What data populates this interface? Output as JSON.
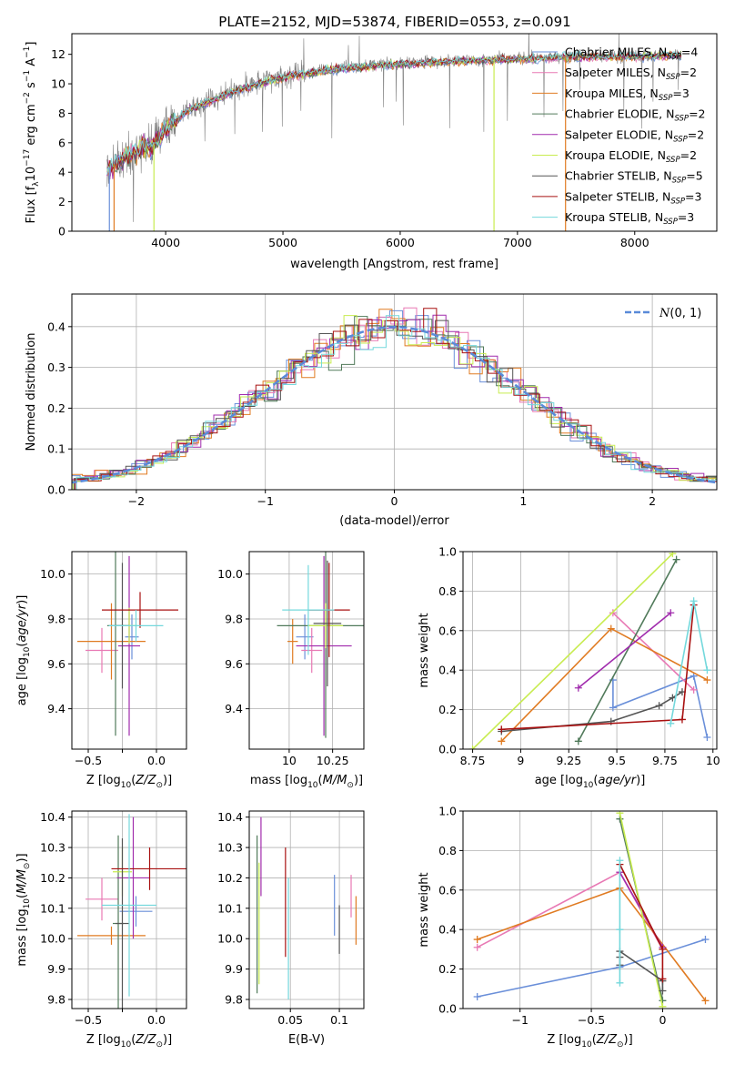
{
  "title": "PLATE=2152, MJD=53874, FIBERID=0553, z=0.091",
  "colors": {
    "Chabrier MILES": "#6a8fd9",
    "Salpeter MILES": "#e879b4",
    "Kroupa MILES": "#e07b22",
    "Chabrier ELODIE": "#507a5a",
    "Salpeter ELODIE": "#a12cad",
    "Kroupa ELODIE": "#c8ec50",
    "Chabrier STELIB": "#555555",
    "Salpeter STELIB": "#a81010",
    "Kroupa STELIB": "#74d8dc",
    "data": "#808080",
    "gauss": "#5a8ad8"
  },
  "chart_data": [
    {
      "id": "spectrum",
      "type": "line",
      "xlabel": "wavelength [Angstrom, rest frame]",
      "ylabel": "Flux [f_λ 10^-17 erg cm^-2 s^-1 A^-1]",
      "xlim": [
        3200,
        8700
      ],
      "ylim": [
        0,
        13.4
      ],
      "xticks": [
        4000,
        5000,
        6000,
        7000,
        8000
      ],
      "yticks": [
        0,
        2,
        4,
        6,
        8,
        10,
        12
      ],
      "legend": [
        {
          "label": "Chabrier MILES, N",
          "sub": "SSP",
          "suffix": "=4"
        },
        {
          "label": "Salpeter MILES, N",
          "sub": "SSP",
          "suffix": "=2"
        },
        {
          "label": "Kroupa MILES, N",
          "sub": "SSP",
          "suffix": "=3"
        },
        {
          "label": "Chabrier ELODIE, N",
          "sub": "SSP",
          "suffix": "=2"
        },
        {
          "label": "Salpeter ELODIE, N",
          "sub": "SSP",
          "suffix": "=2"
        },
        {
          "label": "Kroupa ELODIE, N",
          "sub": "SSP",
          "suffix": "=2"
        },
        {
          "label": "Chabrier STELIB, N",
          "sub": "SSP",
          "suffix": "=5"
        },
        {
          "label": "Salpeter STELIB, N",
          "sub": "SSP",
          "suffix": "=3"
        },
        {
          "label": "Kroupa STELIB, N",
          "sub": "SSP",
          "suffix": "=3"
        }
      ],
      "continuum": [
        [
          3500,
          4.2
        ],
        [
          3600,
          4.8
        ],
        [
          3700,
          5.3
        ],
        [
          3800,
          5.7
        ],
        [
          3900,
          5.9
        ],
        [
          4000,
          7.0
        ],
        [
          4200,
          8.3
        ],
        [
          4500,
          9.3
        ],
        [
          4800,
          10.1
        ],
        [
          5000,
          10.5
        ],
        [
          5500,
          11.1
        ],
        [
          6000,
          11.4
        ],
        [
          6500,
          11.6
        ],
        [
          7000,
          11.7
        ],
        [
          7500,
          11.9
        ],
        [
          8000,
          11.9
        ],
        [
          8400,
          12.0
        ]
      ]
    },
    {
      "id": "residuals",
      "type": "line",
      "xlabel": "(data-model)/error",
      "ylabel": "Normed distribution",
      "xlim": [
        -2.5,
        2.5
      ],
      "ylim": [
        0,
        0.48
      ],
      "xticks": [
        -2,
        -1,
        0,
        1,
        2
      ],
      "yticks": [
        0.0,
        0.1,
        0.2,
        0.3,
        0.4
      ],
      "legend": "N(0,1)",
      "legend_placement": "top-right"
    },
    {
      "id": "z-age",
      "type": "scatter",
      "xlabel": "Z [log10(Z/Z⊙)]",
      "ylabel": "age [log10(age/yr)]",
      "xlim": [
        -0.62,
        0.22
      ],
      "ylim": [
        9.22,
        10.1
      ],
      "xticks": [
        -0.5,
        -0.25,
        0.0
      ],
      "xtick_labels": [
        "−0.5",
        "",
        "0.0"
      ],
      "yticks": [
        9.4,
        9.6,
        9.8,
        10.0
      ],
      "points": [
        {
          "series": "Chabrier MILES",
          "x": -0.18,
          "y": 9.72,
          "xerr": 0.05,
          "yerr": 0.1
        },
        {
          "series": "Salpeter MILES",
          "x": -0.4,
          "y": 9.66,
          "xerr": 0.12,
          "yerr": 0.1
        },
        {
          "series": "Kroupa MILES",
          "x": -0.33,
          "y": 9.7,
          "xerr": 0.25,
          "yerr": 0.17
        },
        {
          "series": "Chabrier ELODIE",
          "x": -0.3,
          "y": 9.77,
          "xerr": 0.06,
          "yerr": 0.49
        },
        {
          "series": "Salpeter ELODIE",
          "x": -0.2,
          "y": 9.68,
          "xerr": 0.08,
          "yerr": 0.4
        },
        {
          "series": "Kroupa ELODIE",
          "x": -0.2,
          "y": 9.77,
          "xerr": 0.06,
          "yerr": 0.08
        },
        {
          "series": "Chabrier STELIB",
          "x": -0.25,
          "y": 9.77,
          "xerr": 0.05,
          "yerr": 0.28
        },
        {
          "series": "Salpeter STELIB",
          "x": -0.12,
          "y": 9.84,
          "xerr": 0.28,
          "yerr": 0.08
        },
        {
          "series": "Kroupa STELIB",
          "x": -0.15,
          "y": 9.77,
          "xerr": 0.2,
          "yerr": 0.07
        }
      ]
    },
    {
      "id": "mass-age",
      "type": "scatter",
      "xlabel": "mass [log10(M/M⊙)]",
      "ylabel": "",
      "xlim": [
        9.77,
        10.43
      ],
      "ylim": [
        9.22,
        10.1
      ],
      "xticks": [
        10.0,
        10.25
      ],
      "yticks": [
        9.4,
        9.6,
        9.8,
        10.0
      ],
      "points": [
        {
          "series": "Chabrier MILES",
          "x": 10.09,
          "y": 9.72,
          "xerr": 0.05,
          "yerr": 0.1
        },
        {
          "series": "Salpeter MILES",
          "x": 10.13,
          "y": 9.66,
          "xerr": 0.06,
          "yerr": 0.1
        },
        {
          "series": "Kroupa MILES",
          "x": 10.02,
          "y": 9.7,
          "xerr": 0.03,
          "yerr": 0.1
        },
        {
          "series": "Chabrier ELODIE",
          "x": 10.21,
          "y": 9.77,
          "xerr": 0.28,
          "yerr": 0.5
        },
        {
          "series": "Salpeter ELODIE",
          "x": 10.2,
          "y": 9.68,
          "xerr": 0.16,
          "yerr": 0.4
        },
        {
          "series": "Kroupa ELODIE",
          "x": 10.21,
          "y": 9.77,
          "xerr": 0.1,
          "yerr": 0.1
        },
        {
          "series": "Chabrier STELIB",
          "x": 10.22,
          "y": 9.78,
          "xerr": 0.08,
          "yerr": 0.28
        },
        {
          "series": "Salpeter STELIB",
          "x": 10.23,
          "y": 9.84,
          "xerr": 0.12,
          "yerr": 0.21
        },
        {
          "series": "Kroupa STELIB",
          "x": 10.11,
          "y": 9.84,
          "xerr": 0.15,
          "yerr": 0.2
        }
      ]
    },
    {
      "id": "age-weight",
      "type": "line",
      "xlabel": "age [log10(age/yr)]",
      "ylabel": "mass weight",
      "xlim": [
        8.7,
        10.02
      ],
      "ylim": [
        0,
        1.0
      ],
      "xticks": [
        8.75,
        9.0,
        9.25,
        9.5,
        9.75,
        10.0
      ],
      "yticks": [
        0.0,
        0.2,
        0.4,
        0.6,
        0.8,
        1.0
      ],
      "series": [
        {
          "name": "Chabrier MILES",
          "x": [
            9.48,
            9.48,
            9.9,
            9.97
          ],
          "y": [
            0.35,
            0.21,
            0.37,
            0.06
          ]
        },
        {
          "name": "Salpeter MILES",
          "x": [
            9.48,
            9.9
          ],
          "y": [
            0.69,
            0.3
          ]
        },
        {
          "name": "Kroupa MILES",
          "x": [
            8.9,
            9.47,
            9.97
          ],
          "y": [
            0.04,
            0.61,
            0.35
          ]
        },
        {
          "name": "Chabrier ELODIE",
          "x": [
            9.3,
            9.81
          ],
          "y": [
            0.04,
            0.96
          ]
        },
        {
          "name": "Salpeter ELODIE",
          "x": [
            9.3,
            9.78
          ],
          "y": [
            0.31,
            0.69
          ]
        },
        {
          "name": "Kroupa ELODIE",
          "x": [
            8.75,
            9.79
          ],
          "y": [
            0.0,
            0.99
          ]
        },
        {
          "name": "Chabrier STELIB",
          "x": [
            8.9,
            9.47,
            9.72,
            9.79,
            9.84
          ],
          "y": [
            0.09,
            0.14,
            0.22,
            0.26,
            0.29
          ]
        },
        {
          "name": "Salpeter STELIB",
          "x": [
            8.9,
            9.84,
            9.9
          ],
          "y": [
            0.1,
            0.15,
            0.73
          ]
        },
        {
          "name": "Kroupa STELIB",
          "x": [
            9.78,
            9.9,
            9.97
          ],
          "y": [
            0.13,
            0.75,
            0.4
          ]
        }
      ]
    },
    {
      "id": "z-mass",
      "type": "scatter",
      "xlabel": "Z [log10(Z/Z⊙)]",
      "ylabel": "mass [log10(M/M⊙)]",
      "xlim": [
        -0.62,
        0.22
      ],
      "ylim": [
        9.77,
        10.42
      ],
      "xticks": [
        -0.5,
        -0.25,
        0.0
      ],
      "xtick_labels": [
        "−0.5",
        "",
        "0.0"
      ],
      "yticks": [
        9.8,
        9.9,
        10.0,
        10.1,
        10.2,
        10.3,
        10.4
      ],
      "points": [
        {
          "series": "Chabrier MILES",
          "x": -0.15,
          "y": 10.09,
          "xerr": 0.12,
          "yerr": 0.05
        },
        {
          "series": "Salpeter MILES",
          "x": -0.4,
          "y": 10.13,
          "xerr": 0.12,
          "yerr": 0.07
        },
        {
          "series": "Kroupa MILES",
          "x": -0.33,
          "y": 10.01,
          "xerr": 0.25,
          "yerr": 0.03
        },
        {
          "series": "Chabrier ELODIE",
          "x": -0.28,
          "y": 10.05,
          "xerr": 0.04,
          "yerr": 0.29
        },
        {
          "series": "Salpeter ELODIE",
          "x": -0.17,
          "y": 10.2,
          "xerr": 0.12,
          "yerr": 0.2
        },
        {
          "series": "Kroupa ELODIE",
          "x": -0.25,
          "y": 10.22,
          "xerr": 0.07,
          "yerr": 0.08
        },
        {
          "series": "Chabrier STELIB",
          "x": -0.25,
          "y": 10.05,
          "xerr": 0.05,
          "yerr": 0.28
        },
        {
          "series": "Salpeter STELIB",
          "x": -0.05,
          "y": 10.23,
          "xerr": 0.28,
          "yerr": 0.07
        },
        {
          "series": "Kroupa STELIB",
          "x": -0.2,
          "y": 10.11,
          "xerr": 0.2,
          "yerr": 0.3
        }
      ]
    },
    {
      "id": "ebv-mass",
      "type": "scatter",
      "xlabel": "E(B-V)",
      "ylabel": "",
      "xlim": [
        0.008,
        0.125
      ],
      "ylim": [
        9.77,
        10.42
      ],
      "xticks": [
        0.05,
        0.1
      ],
      "yticks": [
        9.8,
        9.9,
        10.0,
        10.1,
        10.2,
        10.3,
        10.4
      ],
      "points": [
        {
          "series": "Chabrier MILES",
          "x": 0.095,
          "y": 10.11,
          "yerr": 0.1
        },
        {
          "series": "Salpeter MILES",
          "x": 0.112,
          "y": 10.14,
          "yerr": 0.07
        },
        {
          "series": "Kroupa MILES",
          "x": 0.117,
          "y": 10.06,
          "yerr": 0.08
        },
        {
          "series": "Chabrier ELODIE",
          "x": 0.016,
          "y": 10.08,
          "yerr": 0.26
        },
        {
          "series": "Salpeter ELODIE",
          "x": 0.02,
          "y": 10.27,
          "yerr": 0.13
        },
        {
          "series": "Kroupa ELODIE",
          "x": 0.018,
          "y": 10.05,
          "yerr": 0.2
        },
        {
          "series": "Chabrier STELIB",
          "x": 0.1,
          "y": 10.03,
          "yerr": 0.08
        },
        {
          "series": "Salpeter STELIB",
          "x": 0.045,
          "y": 10.12,
          "yerr": 0.18
        },
        {
          "series": "Kroupa STELIB",
          "x": 0.048,
          "y": 10.0,
          "yerr": 0.2
        }
      ]
    },
    {
      "id": "z-weight",
      "type": "line",
      "xlabel": "Z [log10(Z/Z⊙)]",
      "ylabel": "mass weight",
      "xlim": [
        -1.4,
        0.38
      ],
      "ylim": [
        0,
        1.0
      ],
      "xticks": [
        -1.0,
        -0.5,
        0.0
      ],
      "yticks": [
        0.0,
        0.2,
        0.4,
        0.6,
        0.8,
        1.0
      ],
      "series": [
        {
          "name": "Chabrier MILES",
          "x": [
            -1.3,
            -0.3,
            0.3
          ],
          "y": [
            0.06,
            0.21,
            0.35
          ]
        },
        {
          "name": "Salpeter MILES",
          "x": [
            -1.3,
            -0.3,
            0.0
          ],
          "y": [
            0.31,
            0.69,
            0.3
          ]
        },
        {
          "name": "Kroupa MILES",
          "x": [
            -1.3,
            -0.3,
            0.3
          ],
          "y": [
            0.35,
            0.61,
            0.04
          ]
        },
        {
          "name": "Chabrier ELODIE",
          "x": [
            -0.3,
            0.0
          ],
          "y": [
            0.96,
            0.04
          ]
        },
        {
          "name": "Salpeter ELODIE",
          "x": [
            -0.3,
            0.0
          ],
          "y": [
            0.69,
            0.31
          ]
        },
        {
          "name": "Kroupa ELODIE",
          "x": [
            -0.3,
            0.0
          ],
          "y": [
            0.99,
            0.01
          ]
        },
        {
          "name": "Chabrier STELIB",
          "x": [
            -0.3,
            -0.3,
            -0.3,
            0.0,
            0.0
          ],
          "y": [
            0.22,
            0.26,
            0.29,
            0.14,
            0.09
          ]
        },
        {
          "name": "Salpeter STELIB",
          "x": [
            -0.3,
            0.0,
            0.0
          ],
          "y": [
            0.73,
            0.3,
            0.15
          ]
        },
        {
          "name": "Kroupa STELIB",
          "x": [
            -0.3,
            -0.3,
            -0.3
          ],
          "y": [
            0.75,
            0.4,
            0.13
          ]
        }
      ]
    }
  ]
}
